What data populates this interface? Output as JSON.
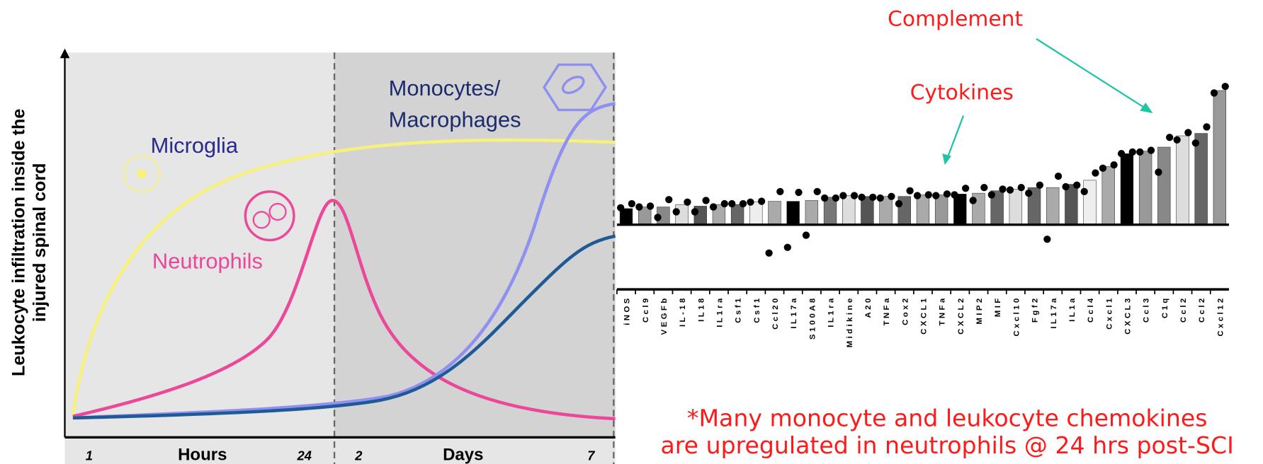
{
  "schematic": {
    "y_axis_label": [
      "Leukocyte infiltration inside the",
      "injured spinal cord"
    ],
    "curve_labels": {
      "microglia": "Microglia",
      "neutrophils": "Neutrophils",
      "monocytes": [
        "Monocytes/",
        "Macrophages"
      ]
    },
    "x_axis": [
      "1",
      "Hours",
      "24",
      "2",
      "Days",
      "7"
    ]
  },
  "chart_data": {
    "type": "bar",
    "annotations": [
      "Complement",
      "Cytokines"
    ],
    "footnote": [
      "*Many monocyte and leukocyte chemokines",
      "are upregulated in neutrophils @ 24 hrs post-SCI"
    ],
    "categories": [
      "iNOS",
      "Ccl9",
      "VEGFb",
      "IL-18",
      "IL18",
      "IL1ra",
      "Csf1",
      "Csf1",
      "Ccl20",
      "IL17a",
      "S100A8",
      "IL1ra",
      "Midikine",
      "A20",
      "TNFa",
      "Cox2",
      "CXCL1",
      "TNFa",
      "CXCL2",
      "MIP2",
      "MIF",
      "Cxcl10",
      "Fgf2",
      "IL17a",
      "IL1a",
      "Ccl4",
      "Cxcl1",
      "CXCL3",
      "Ccl3",
      "C1q",
      "Ccl2",
      "Ccl2",
      "Cxcl12"
    ],
    "values": [
      2.0,
      2.2,
      2.2,
      2.5,
      2.3,
      2.5,
      2.5,
      2.8,
      2.9,
      2.9,
      3.0,
      3.4,
      3.6,
      3.5,
      3.5,
      3.5,
      3.7,
      3.7,
      3.8,
      3.9,
      4.2,
      4.4,
      4.6,
      4.6,
      5.0,
      5.5,
      7.2,
      8.8,
      9.1,
      9.6,
      11.0,
      11.3,
      16.6
    ],
    "colors": [
      "#000000",
      "#999999",
      "#888888",
      "#dddddd",
      "#555555",
      "#aaaaaa",
      "#666666",
      "#eeeeee",
      "#aaaaaa",
      "#000000",
      "#aaaaaa",
      "#777777",
      "#dddddd",
      "#555555",
      "#aaaaaa",
      "#666666",
      "#aaaaaa",
      "#999999",
      "#000000",
      "#aaaaaa",
      "#666666",
      "#dddddd",
      "#666666",
      "#aaaaaa",
      "#555555",
      "#eeeeee",
      "#aaaaaa",
      "#000000",
      "#999999",
      "#888888",
      "#dddddd",
      "#666666",
      "#999999"
    ],
    "points": [
      [
        2.1,
        2.6
      ],
      [
        2.2,
        2.3
      ],
      [
        0.9,
        3.1
      ],
      [
        1.6,
        2.8
      ],
      [
        1.6,
        3.0
      ],
      [
        2.2,
        2.6
      ],
      [
        2.6,
        2.6
      ],
      [
        2.8,
        2.9
      ],
      [
        -3.5,
        4.1
      ],
      [
        -2.8,
        4.0
      ],
      [
        -1.3,
        4.1
      ],
      [
        3.3,
        3.3
      ],
      [
        3.6,
        3.6
      ],
      [
        3.4,
        3.4
      ],
      [
        3.3,
        3.5
      ],
      [
        2.6,
        4.2
      ],
      [
        3.6,
        3.7
      ],
      [
        3.6,
        3.8
      ],
      [
        3.7,
        4.5
      ],
      [
        3.0,
        4.6
      ],
      [
        3.7,
        4.4
      ],
      [
        4.3,
        4.6
      ],
      [
        3.9,
        4.9
      ],
      [
        -1.8,
        6.0
      ],
      [
        4.7,
        4.9
      ],
      [
        4.1,
        6.4
      ],
      [
        7.0,
        7.4
      ],
      [
        8.8,
        9.0
      ],
      [
        9.0,
        9.2
      ],
      [
        6.5,
        10.8
      ],
      [
        10.5,
        11.4
      ],
      [
        10.1,
        12.1
      ],
      [
        16.3,
        17.1
      ]
    ],
    "ylim": [
      -8,
      20
    ]
  }
}
